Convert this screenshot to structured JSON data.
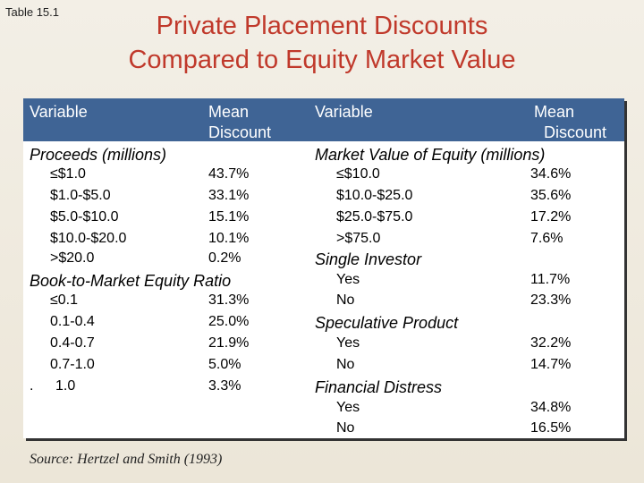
{
  "table_label": "Table 15.1",
  "title_line1": "Private Placement Discounts",
  "title_line2": "Compared to Equity Market Value",
  "left": {
    "h_variable": "Variable",
    "h_mean": "Mean",
    "h_discount": "Discount",
    "proceeds": {
      "label": "Proceeds (millions)",
      "rows": [
        {
          "range": "≤$1.0",
          "value": "43.7%"
        },
        {
          "range": "$1.0-$5.0",
          "value": "33.1%"
        },
        {
          "range": "$5.0-$10.0",
          "value": "15.1%"
        },
        {
          "range": "$10.0-$20.0",
          "value": "10.1%"
        },
        {
          "range": ">$20.0",
          "value": "0.2%"
        }
      ]
    },
    "btm": {
      "label": "Book-to-Market Equity Ratio",
      "rows": [
        {
          "range": "≤0.1",
          "value": "31.3%"
        },
        {
          "range": "0.1-0.4",
          "value": "25.0%"
        },
        {
          "range": "0.4-0.7",
          "value": "21.9%"
        },
        {
          "range": "0.7-1.0",
          "value": "5.0%"
        },
        {
          "range": "1.0",
          "value": "3.3%"
        }
      ],
      "last_prefix": "."
    }
  },
  "right": {
    "h_variable": "Variable",
    "h_mean": "Mean",
    "h_discount": "Discount",
    "mve": {
      "label": "Market Value of Equity (millions)",
      "rows": [
        {
          "range": "≤$10.0",
          "value": "34.6%"
        },
        {
          "range": "$10.0-$25.0",
          "value": "35.6%"
        },
        {
          "range": "$25.0-$75.0",
          "value": "17.2%"
        },
        {
          "range": ">$75.0",
          "value": "7.6%"
        }
      ]
    },
    "single": {
      "label": "Single Investor",
      "rows": [
        {
          "range": "Yes",
          "value": "11.7%"
        },
        {
          "range": "No",
          "value": "23.3%"
        }
      ]
    },
    "spec": {
      "label": "Speculative Product",
      "rows": [
        {
          "range": "Yes",
          "value": "32.2%"
        },
        {
          "range": "No",
          "value": "14.7%"
        }
      ]
    },
    "distress": {
      "label": "Financial Distress",
      "rows": [
        {
          "range": "Yes",
          "value": "34.8%"
        },
        {
          "range": "No",
          "value": "16.5%"
        }
      ]
    }
  },
  "source": "Source: Hertzel and Smith (1993)"
}
